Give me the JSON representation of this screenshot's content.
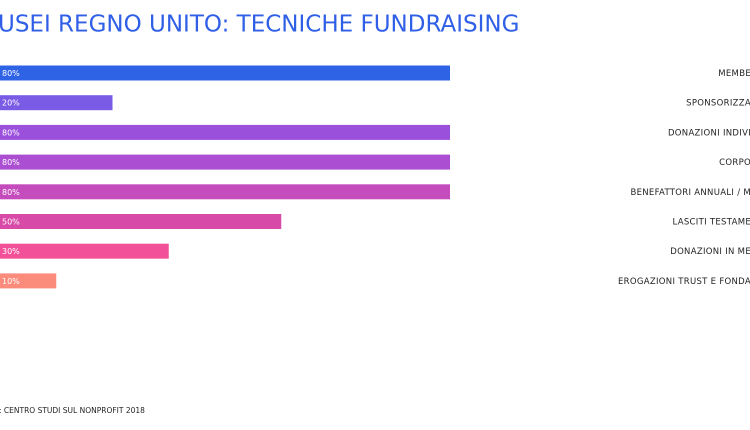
{
  "chart_data": {
    "type": "bar",
    "orientation": "horizontal",
    "title": "USEI REGNO UNITO: TECNICHE FUNDRAISING",
    "source": ": CENTRO STUDI SUL NONPROFIT 2018",
    "categories": [
      "MEMBE",
      "SPONSORIZZA",
      "DONAZIONI INDIVI",
      "CORPO",
      "BENEFATTORI ANNUALI / M",
      "LASCITI TESTAME",
      "DONAZIONI IN ME",
      "EROGAZIONI TRUST E FONDA"
    ],
    "values": [
      80,
      20,
      80,
      80,
      80,
      50,
      30,
      10
    ],
    "value_labels": [
      "80%",
      "20%",
      "80%",
      "80%",
      "80%",
      "50%",
      "30%",
      "10%"
    ],
    "colors": [
      "#2f63e6",
      "#7a5be6",
      "#9b50dc",
      "#ab4ed2",
      "#c44cbc",
      "#d84aa8",
      "#f2519a",
      "#fb8c7b"
    ],
    "xlim": [
      0,
      100
    ]
  }
}
